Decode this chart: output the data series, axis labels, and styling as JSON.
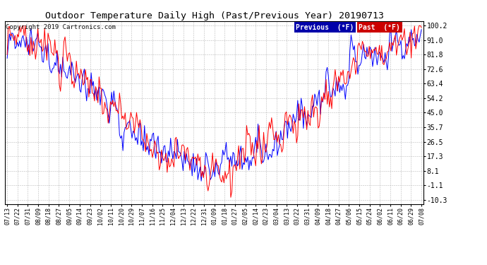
{
  "title": "Outdoor Temperature Daily High (Past/Previous Year) 20190713",
  "copyright": "Copyright 2019 Cartronics.com",
  "legend_previous_label": "Previous  (°F)",
  "legend_past_label": "Past  (°F)",
  "legend_previous_color": "#0000FF",
  "legend_previous_bg": "#0000AA",
  "legend_past_color": "#FF0000",
  "legend_past_bg": "#CC0000",
  "yticks": [
    100.2,
    91.0,
    81.8,
    72.6,
    63.4,
    54.2,
    45.0,
    35.7,
    26.5,
    17.3,
    8.1,
    -1.1,
    -10.3
  ],
  "ylim": [
    -13,
    103
  ],
  "background_color": "#FFFFFF",
  "plot_bg_color": "#FFFFFF",
  "grid_color": "#AAAAAA",
  "xtick_labels": [
    "07/13",
    "07/22",
    "07/31",
    "08/09",
    "08/18",
    "08/27",
    "09/05",
    "09/14",
    "09/23",
    "10/02",
    "10/11",
    "10/20",
    "10/29",
    "11/07",
    "11/16",
    "11/25",
    "12/04",
    "12/13",
    "12/22",
    "12/31",
    "01/09",
    "01/18",
    "01/27",
    "02/05",
    "02/14",
    "02/23",
    "03/04",
    "03/13",
    "03/22",
    "03/31",
    "04/09",
    "04/18",
    "04/27",
    "05/06",
    "05/15",
    "05/24",
    "06/02",
    "06/11",
    "06/20",
    "06/29",
    "07/08"
  ],
  "num_points": 366,
  "summer_peak": 88.0,
  "winter_trough": 10.0,
  "noise_std_prev": 6.0,
  "noise_std_past": 7.0
}
